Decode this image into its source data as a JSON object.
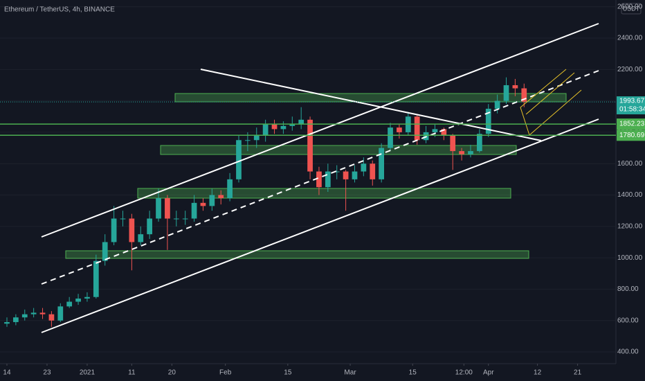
{
  "chart_data": {
    "type": "candlestick",
    "title": "Ethereum / TetherUS, 4h, BINANCE",
    "currency": "USDT",
    "x": [
      0,
      2,
      4,
      6,
      8,
      10,
      12,
      14,
      16,
      18,
      20,
      22,
      24,
      26,
      28,
      30,
      32,
      34,
      36,
      38,
      40,
      42,
      44,
      46,
      48,
      50,
      52,
      54,
      56,
      58,
      60,
      62,
      64,
      66,
      68,
      70,
      72,
      74,
      76,
      78,
      80,
      82,
      84,
      86,
      88,
      90,
      92,
      94,
      96,
      98,
      100,
      102,
      104,
      106,
      108,
      110,
      112,
      114,
      116
    ],
    "open": [
      580,
      590,
      620,
      640,
      650,
      640,
      600,
      690,
      720,
      740,
      750,
      980,
      1100,
      1250,
      1250,
      1100,
      1150,
      1250,
      1380,
      1250,
      1250,
      1250,
      1350,
      1330,
      1400,
      1380,
      1500,
      1750,
      1750,
      1780,
      1850,
      1820,
      1840,
      1850,
      1880,
      1550,
      1450,
      1550,
      1550,
      1500,
      1550,
      1600,
      1500,
      1700,
      1830,
      1800,
      1900,
      1750,
      1800,
      1820,
      1780,
      1680,
      1660,
      1680,
      1790,
      1950,
      2000,
      2100,
      2080
    ],
    "close": [
      590,
      620,
      640,
      650,
      640,
      600,
      690,
      720,
      740,
      750,
      980,
      1100,
      1250,
      1250,
      1100,
      1150,
      1250,
      1380,
      1250,
      1250,
      1250,
      1350,
      1330,
      1400,
      1380,
      1500,
      1750,
      1750,
      1780,
      1850,
      1820,
      1840,
      1850,
      1880,
      1550,
      1450,
      1550,
      1550,
      1500,
      1550,
      1600,
      1500,
      1700,
      1830,
      1800,
      1900,
      1750,
      1800,
      1820,
      1780,
      1680,
      1660,
      1680,
      1790,
      1950,
      2000,
      2100,
      2080,
      1993.67
    ],
    "high": [
      620,
      640,
      670,
      680,
      680,
      660,
      710,
      750,
      770,
      780,
      1020,
      1150,
      1330,
      1300,
      1280,
      1200,
      1300,
      1440,
      1400,
      1300,
      1300,
      1400,
      1380,
      1440,
      1430,
      1540,
      1780,
      1800,
      1830,
      1880,
      1880,
      1870,
      1900,
      1960,
      1900,
      1580,
      1600,
      1590,
      1560,
      1590,
      1640,
      1620,
      1730,
      1860,
      1850,
      1930,
      1910,
      1840,
      1850,
      1830,
      1790,
      1700,
      1720,
      1820,
      1980,
      2040,
      2150,
      2140,
      2110
    ],
    "low": [
      560,
      570,
      600,
      620,
      610,
      560,
      590,
      680,
      700,
      720,
      740,
      950,
      1080,
      1200,
      920,
      1080,
      1120,
      1230,
      1050,
      1200,
      1210,
      1230,
      1300,
      1300,
      1340,
      1360,
      1480,
      1680,
      1700,
      1740,
      1790,
      1790,
      1810,
      1820,
      1500,
      1400,
      1420,
      1500,
      1300,
      1480,
      1520,
      1460,
      1480,
      1680,
      1760,
      1780,
      1720,
      1730,
      1770,
      1750,
      1560,
      1620,
      1640,
      1670,
      1770,
      1920,
      1980,
      2030,
      1960
    ],
    "up_color": "#26a69a",
    "down_color": "#ef5350",
    "xlim": [
      -1.55,
      136.6
    ],
    "ylim": [
      325,
      2643
    ],
    "xticks": [
      {
        "value": 0,
        "label": "14"
      },
      {
        "value": 9,
        "label": "23"
      },
      {
        "value": 18,
        "label": "2021"
      },
      {
        "value": 28,
        "label": "11"
      },
      {
        "value": 37,
        "label": "20"
      },
      {
        "value": 49,
        "label": "Feb"
      },
      {
        "value": 63,
        "label": "15"
      },
      {
        "value": 77,
        "label": "Mar"
      },
      {
        "value": 91,
        "label": "15"
      },
      {
        "value": 102.5,
        "label": "12:00"
      },
      {
        "value": 108,
        "label": "Apr"
      },
      {
        "value": 119,
        "label": "12"
      },
      {
        "value": 128,
        "label": "21"
      }
    ],
    "yticks": [
      {
        "value": 400,
        "label": "400.00"
      },
      {
        "value": 600,
        "label": "600.00"
      },
      {
        "value": 800,
        "label": "800.00"
      },
      {
        "value": 1000,
        "label": "1000.00"
      },
      {
        "value": 1200,
        "label": "1200.00"
      },
      {
        "value": 1400,
        "label": "1400.00"
      },
      {
        "value": 1600,
        "label": "1600.00"
      },
      {
        "value": 1800,
        "label": "1800.00"
      },
      {
        "value": 2000,
        "label": "2000.00"
      },
      {
        "value": 2200,
        "label": "2200.00"
      },
      {
        "value": 2400,
        "label": "2400.00"
      },
      {
        "value": 2600,
        "label": "2600.00"
      }
    ],
    "last_price": 1993.67,
    "last_color": "#26a69a",
    "countdown": "01:58:34",
    "price_lines": [
      {
        "value": 1852.23,
        "color": "#4caf50"
      },
      {
        "value": 1780.69,
        "color": "#4caf50"
      }
    ]
  }
}
